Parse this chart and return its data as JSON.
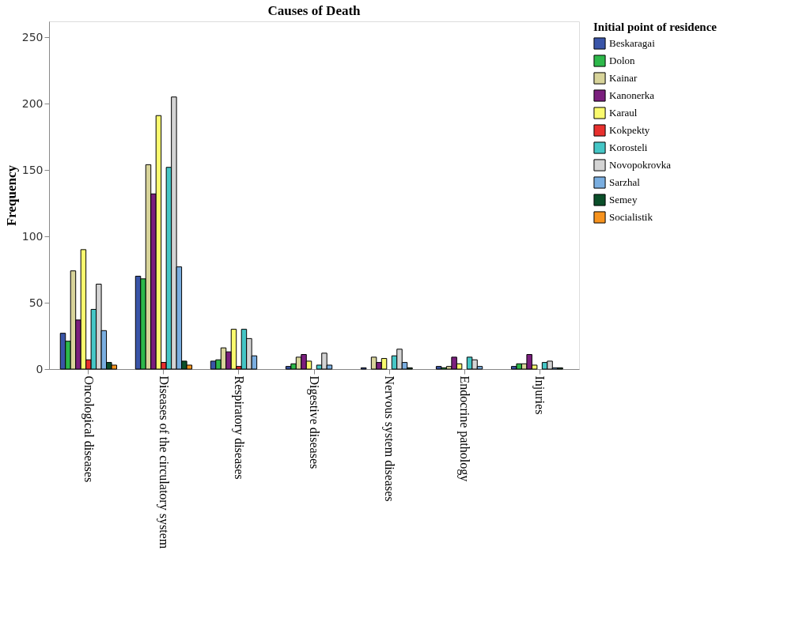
{
  "chart_data": {
    "type": "bar",
    "title": "Causes of Death",
    "xlabel": null,
    "ylabel": "Frequency",
    "legend_title": "Initial point of residence",
    "categories": [
      "Oncological diseases",
      "Diseases of the circulatory system",
      "Respiratory diseases",
      "Digestive diseases",
      "Nervous system diseases",
      "Endocrine pathology",
      "Injuries"
    ],
    "series": [
      {
        "name": "Beskaragai",
        "color": "#3a55a8",
        "values": [
          27,
          70,
          6,
          2,
          1,
          2,
          2
        ]
      },
      {
        "name": "Dolon",
        "color": "#2db84a",
        "values": [
          21,
          68,
          7,
          4,
          null,
          1,
          4
        ]
      },
      {
        "name": "Kainar",
        "color": "#d8d49a",
        "values": [
          74,
          154,
          16,
          9,
          9,
          2,
          4
        ]
      },
      {
        "name": "Kanonerka",
        "color": "#7b1f7e",
        "values": [
          37,
          132,
          13,
          11,
          5,
          9,
          11
        ]
      },
      {
        "name": "Karaul",
        "color": "#fafa6e",
        "values": [
          90,
          191,
          30,
          6,
          8,
          4,
          3
        ]
      },
      {
        "name": "Kokpekty",
        "color": "#e8302e",
        "values": [
          7,
          5,
          2,
          null,
          null,
          null,
          null
        ]
      },
      {
        "name": "Korosteli",
        "color": "#45c6c6",
        "values": [
          45,
          152,
          30,
          3,
          10,
          9,
          5
        ]
      },
      {
        "name": "Novopokrovka",
        "color": "#d4d4d4",
        "values": [
          64,
          205,
          23,
          12,
          15,
          7,
          6
        ]
      },
      {
        "name": "Sarzhal",
        "color": "#7aaee0",
        "values": [
          29,
          77,
          10,
          3,
          5,
          2,
          1
        ]
      },
      {
        "name": "Semey",
        "color": "#0b4f2a",
        "values": [
          5,
          6,
          null,
          null,
          1,
          null,
          1
        ]
      },
      {
        "name": "Socialistik",
        "color": "#f7931e",
        "values": [
          3,
          3,
          null,
          null,
          null,
          null,
          null
        ]
      }
    ],
    "ylim": [
      0,
      262
    ],
    "yticks": [
      0,
      50,
      100,
      150,
      200,
      250
    ],
    "grid": false,
    "legend": "right"
  }
}
